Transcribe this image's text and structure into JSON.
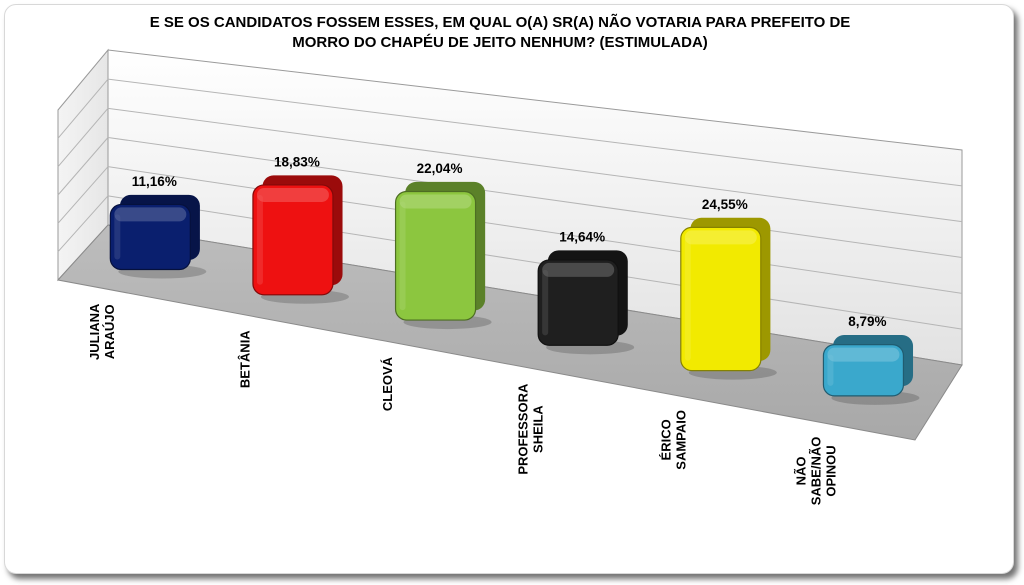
{
  "chart_data": {
    "type": "bar",
    "title_lines": [
      "E SE OS CANDIDATOS FOSSEM ESSES, EM QUAL O(A) SR(A) NÃO VOTARIA PARA PREFEITO DE",
      "MORRO DO CHAPÉU DE JEITO NENHUM? (ESTIMULADA)"
    ],
    "categories": [
      [
        "JULIANA",
        "ARAÚJO"
      ],
      [
        "BETÂNIA"
      ],
      [
        "CLEOVÁ"
      ],
      [
        "PROFESSORA",
        "SHEILA"
      ],
      [
        "ÉRICO",
        "SAMPAIO"
      ],
      [
        "NÃO",
        "SABE/NÃO",
        "OPINOU"
      ]
    ],
    "values": [
      11.16,
      18.83,
      22.04,
      14.64,
      24.55,
      8.79
    ],
    "value_labels": [
      "11,16%",
      "18,83%",
      "22,04%",
      "14,64%",
      "24,55%",
      "8,79%"
    ],
    "colors": [
      "#0a1f6e",
      "#ee1111",
      "#8cc63f",
      "#1f1f1f",
      "#f2ea00",
      "#3aa8cc"
    ],
    "ylim": [
      0,
      30
    ],
    "grid": true,
    "legend": "none",
    "view": "3d-perspective"
  }
}
